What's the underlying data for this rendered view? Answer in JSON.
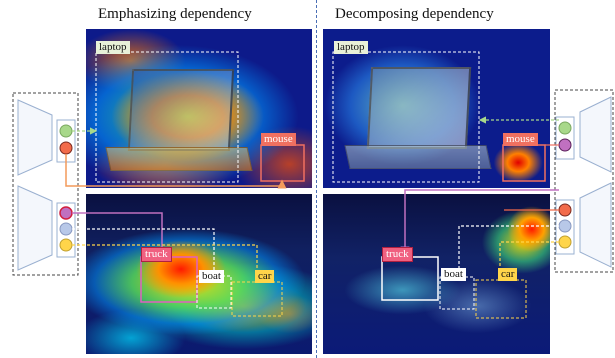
{
  "panels": {
    "left_title": "Emphasizing dependency",
    "right_title": "Decomposing dependency"
  },
  "labels": {
    "laptop": "laptop",
    "mouse": "mouse",
    "truck": "truck",
    "boat": "boat",
    "car": "car"
  },
  "colors": {
    "laptop_label_bg": "#e8f0d8",
    "mouse_label_bg": "#f07060",
    "truck_label_bg": "#f06080",
    "boat_label_bg": "#ffffff",
    "car_label_bg": "#ffd54a",
    "green_feature": "#a8d88a",
    "red_feature": "#f26b4a",
    "purple_feature": "#c070c0",
    "blue_feature": "#b8c8e8",
    "yellow_feature": "#ffd54a",
    "orange_line": "#f49a5a",
    "divider": "#4a6fb5"
  }
}
